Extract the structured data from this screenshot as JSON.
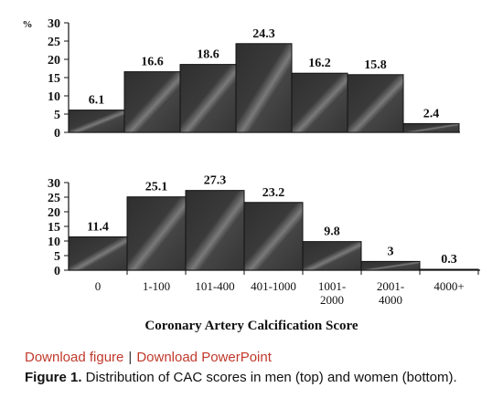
{
  "chart_data": [
    {
      "type": "bar",
      "panel": "top",
      "categories": [
        "0",
        "1-100",
        "101-400",
        "401-1000",
        "1001-2000",
        "2001-4000",
        "4000+"
      ],
      "values": [
        6.1,
        16.6,
        18.6,
        24.3,
        16.2,
        15.8,
        2.4
      ],
      "ylabel": "%",
      "yticks": [
        0,
        5,
        10,
        15,
        20,
        25,
        30
      ],
      "ylim": [
        0,
        30
      ]
    },
    {
      "type": "bar",
      "panel": "bottom",
      "categories": [
        "0",
        "1-100",
        "101-400",
        "401-1000",
        "1001-2000",
        "2001-4000",
        "4000+"
      ],
      "category_label_lines": [
        [
          "0"
        ],
        [
          "1-100"
        ],
        [
          "101-400"
        ],
        [
          "401-1000"
        ],
        [
          "1001-",
          "2000"
        ],
        [
          "2001-",
          "4000"
        ],
        [
          "4000+"
        ]
      ],
      "values": [
        11.4,
        25.1,
        27.3,
        23.2,
        9.8,
        3,
        0.3
      ],
      "yticks": [
        0,
        5,
        10,
        15,
        20,
        25,
        30
      ],
      "ylim": [
        0,
        30
      ],
      "xlabel": "Coronary Artery Calcification Score"
    }
  ],
  "links": {
    "download_figure": "Download figure",
    "separator": "|",
    "download_powerpoint": "Download PowerPoint"
  },
  "caption": {
    "label": "Figure 1.",
    "text": " Distribution of CAC scores in men (top) and women (bottom)."
  },
  "colors": {
    "bar_fill": "#3d3d3d",
    "bar_highlight": "#8a8a8a",
    "link": "#c0392b"
  }
}
